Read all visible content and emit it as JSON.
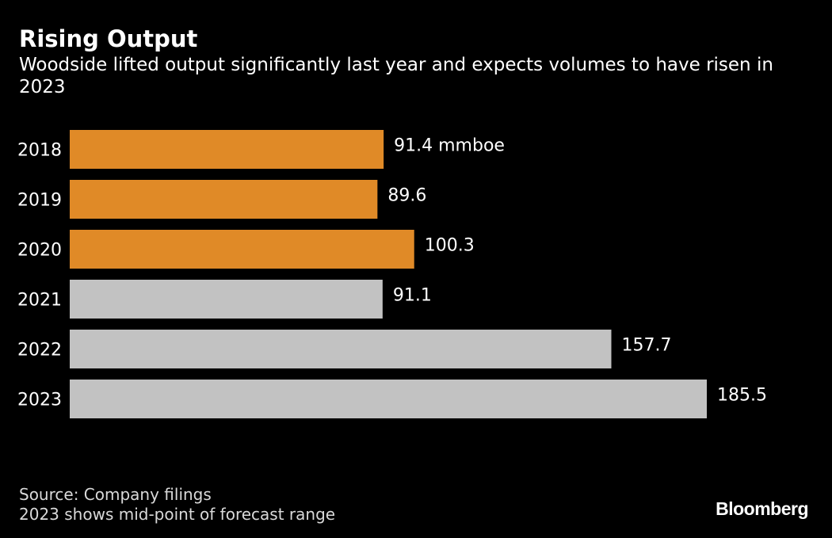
{
  "header": {
    "title": "Rising Output",
    "subtitle": "Woodside lifted output significantly last year and expects volumes to have risen in 2023"
  },
  "chart_data": {
    "type": "bar",
    "orientation": "horizontal",
    "categories": [
      "2018",
      "2019",
      "2020",
      "2021",
      "2022",
      "2023"
    ],
    "values": [
      91.4,
      89.6,
      100.3,
      91.1,
      157.7,
      185.5
    ],
    "value_labels": [
      "91.4 mmboe",
      "89.6",
      "100.3",
      "91.1",
      "157.7",
      "185.5"
    ],
    "unit": "mmboe",
    "bar_colors": [
      "#e08a27",
      "#e08a27",
      "#e08a27",
      "#c2c2c2",
      "#c2c2c2",
      "#c2c2c2"
    ],
    "xlim": [
      0,
      185.5
    ],
    "title": "Rising Output",
    "xlabel": "",
    "ylabel": "",
    "grid": false
  },
  "footer": {
    "source": "Source: Company filings",
    "note": "2023 shows mid-point of forecast range",
    "brand": "Bloomberg"
  },
  "colors": {
    "background": "#000000",
    "highlight": "#e08a27",
    "muted": "#c2c2c2"
  }
}
